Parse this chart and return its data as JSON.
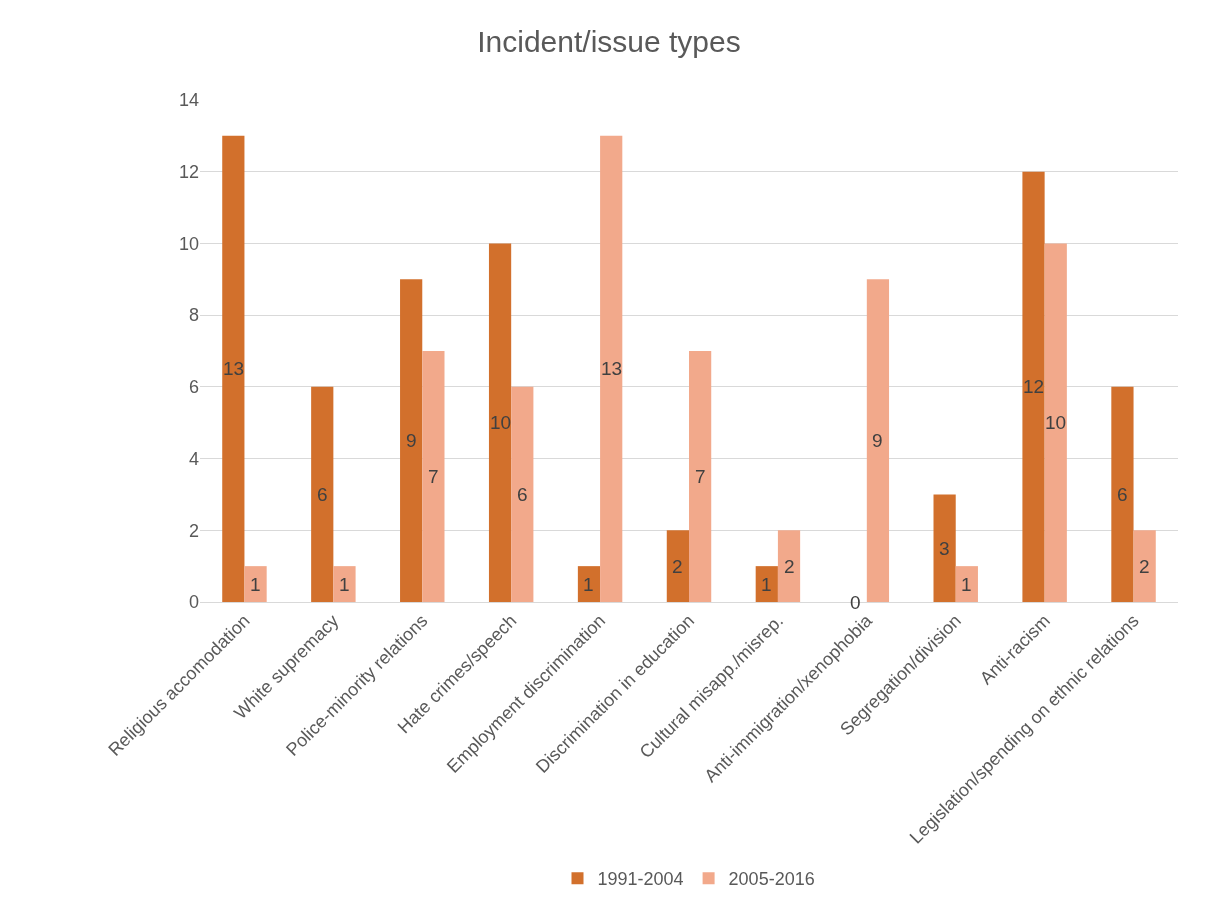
{
  "chart_data": {
    "type": "bar",
    "title": "Incident/issue types",
    "categories": [
      "Religious accomodation",
      "White supremacy",
      "Police-minority relations",
      "Hate crimes/speech",
      "Employment discrimination",
      "Discrimination in education",
      "Cultural misapp./misrep.",
      "Anti-immigration/xenophobia",
      "Segregation/division",
      "Anti-racism",
      "Legislation/spending on ethnic relations"
    ],
    "series": [
      {
        "name": "1991-2004",
        "color": "#d2702c",
        "values": [
          13,
          6,
          9,
          10,
          1,
          2,
          1,
          0,
          3,
          12,
          6
        ]
      },
      {
        "name": "2005-2016",
        "color": "#f2a98b",
        "values": [
          1,
          1,
          7,
          6,
          13,
          7,
          2,
          9,
          1,
          10,
          2
        ]
      }
    ],
    "ylim": [
      0,
      14
    ],
    "yticks": [
      0,
      2,
      4,
      6,
      8,
      10,
      12,
      14
    ],
    "grid": "y",
    "legend": "bottom",
    "data_labels": true
  }
}
